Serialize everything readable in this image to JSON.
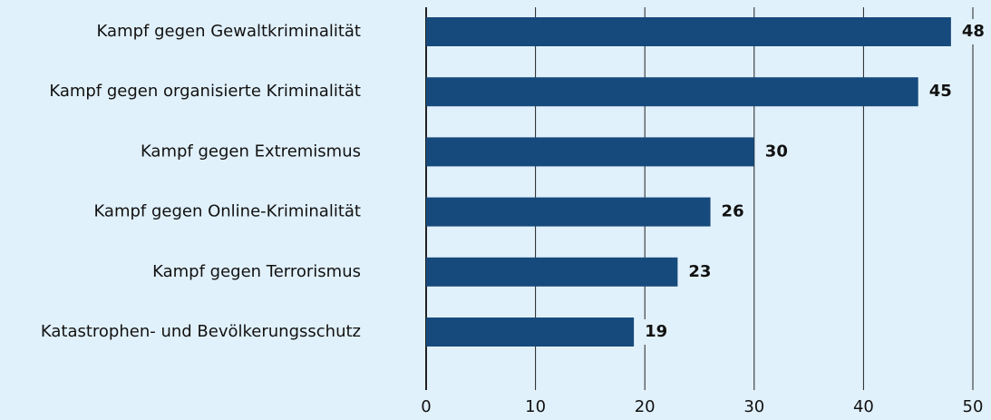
{
  "chart_data": {
    "type": "bar",
    "orientation": "horizontal",
    "categories": [
      "Kampf gegen Gewaltkriminalität",
      "Kampf gegen organisierte Kriminalität",
      "Kampf gegen Extremismus",
      "Kampf gegen Online-Kriminalität",
      "Kampf gegen Terrorismus",
      "Katastrophen- und Bevölkerungsschutz"
    ],
    "values": [
      48,
      45,
      30,
      26,
      23,
      19
    ],
    "color": "#174a7c",
    "xlim": [
      0,
      50
    ],
    "xticks": [
      0,
      10,
      20,
      30,
      40,
      50
    ],
    "grid": true
  }
}
